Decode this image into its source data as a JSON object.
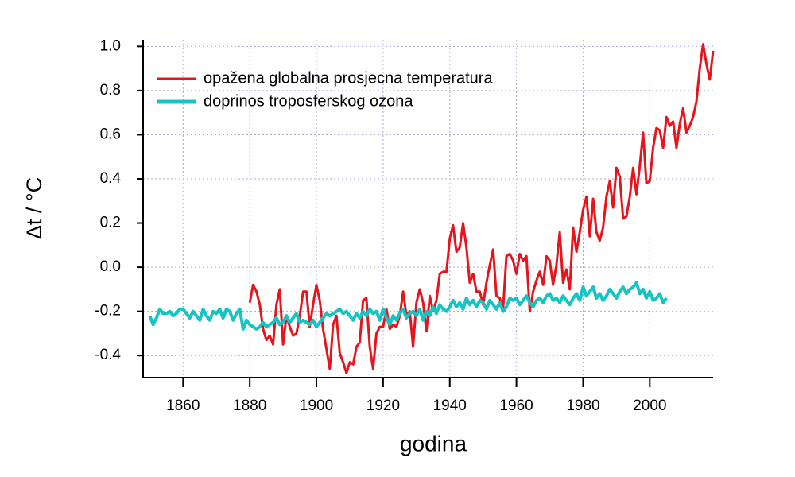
{
  "chart_data": {
    "type": "line",
    "ylabel": "Δt / °C",
    "xlabel": "godina",
    "xlim": [
      1848,
      2019
    ],
    "ylim": [
      -0.5,
      1.03
    ],
    "xticks": [
      1860,
      1880,
      1900,
      1920,
      1940,
      1960,
      1980,
      2000
    ],
    "yticks": [
      {
        "value": 1,
        "label": "1.0"
      },
      0.8,
      0.6,
      0.4,
      0.2,
      {
        "value": 0,
        "label": "0.0"
      },
      -0.2,
      -0.4
    ],
    "grid": true,
    "legend": "upper left",
    "series": [
      {
        "name": "opažena globalna prosjecna temperatura",
        "color": "#e8141c",
        "x": [
          1880,
          1881,
          1882,
          1883,
          1884,
          1885,
          1886,
          1887,
          1888,
          1889,
          1890,
          1891,
          1892,
          1893,
          1894,
          1895,
          1896,
          1897,
          1898,
          1899,
          1900,
          1901,
          1902,
          1903,
          1904,
          1905,
          1906,
          1907,
          1908,
          1909,
          1910,
          1911,
          1912,
          1913,
          1914,
          1915,
          1916,
          1917,
          1918,
          1919,
          1920,
          1921,
          1922,
          1923,
          1924,
          1925,
          1926,
          1927,
          1928,
          1929,
          1930,
          1931,
          1932,
          1933,
          1934,
          1935,
          1936,
          1937,
          1938,
          1939,
          1940,
          1941,
          1942,
          1943,
          1944,
          1945,
          1946,
          1947,
          1948,
          1949,
          1950,
          1951,
          1952,
          1953,
          1954,
          1955,
          1956,
          1957,
          1958,
          1959,
          1960,
          1961,
          1962,
          1963,
          1964,
          1965,
          1966,
          1967,
          1968,
          1969,
          1970,
          1971,
          1972,
          1973,
          1974,
          1975,
          1976,
          1977,
          1978,
          1979,
          1980,
          1981,
          1982,
          1983,
          1984,
          1985,
          1986,
          1987,
          1988,
          1989,
          1990,
          1991,
          1992,
          1993,
          1994,
          1995,
          1996,
          1997,
          1998,
          1999,
          2000,
          2001,
          2002,
          2003,
          2004,
          2005,
          2006,
          2007,
          2008,
          2009,
          2010,
          2011,
          2012,
          2013,
          2014,
          2015,
          2016,
          2017,
          2018,
          2019
        ],
        "values": [
          -0.16,
          -0.08,
          -0.11,
          -0.17,
          -0.28,
          -0.33,
          -0.31,
          -0.35,
          -0.17,
          -0.1,
          -0.35,
          -0.22,
          -0.27,
          -0.31,
          -0.3,
          -0.22,
          -0.11,
          -0.11,
          -0.27,
          -0.17,
          -0.08,
          -0.15,
          -0.28,
          -0.37,
          -0.46,
          -0.26,
          -0.22,
          -0.39,
          -0.43,
          -0.48,
          -0.43,
          -0.44,
          -0.36,
          -0.34,
          -0.15,
          -0.14,
          -0.36,
          -0.46,
          -0.3,
          -0.27,
          -0.27,
          -0.19,
          -0.28,
          -0.26,
          -0.27,
          -0.22,
          -0.11,
          -0.22,
          -0.2,
          -0.36,
          -0.16,
          -0.1,
          -0.16,
          -0.29,
          -0.13,
          -0.2,
          -0.15,
          -0.03,
          -0.02,
          -0.02,
          0.13,
          0.19,
          0.07,
          0.09,
          0.2,
          0.09,
          -0.07,
          -0.03,
          -0.11,
          -0.11,
          -0.17,
          -0.07,
          0.01,
          0.08,
          -0.13,
          -0.14,
          -0.19,
          0.05,
          0.06,
          0.03,
          -0.03,
          0.06,
          0.03,
          0.05,
          -0.2,
          -0.11,
          -0.06,
          -0.02,
          -0.08,
          0.05,
          0.03,
          -0.08,
          0.01,
          0.16,
          -0.07,
          -0.01,
          -0.1,
          0.18,
          0.07,
          0.16,
          0.26,
          0.32,
          0.14,
          0.31,
          0.16,
          0.12,
          0.18,
          0.32,
          0.39,
          0.27,
          0.45,
          0.41,
          0.22,
          0.23,
          0.32,
          0.45,
          0.33,
          0.46,
          0.61,
          0.38,
          0.39,
          0.54,
          0.63,
          0.62,
          0.54,
          0.68,
          0.64,
          0.66,
          0.54,
          0.65,
          0.72,
          0.61,
          0.64,
          0.68,
          0.75,
          0.9,
          1.01,
          0.92,
          0.85,
          0.98
        ]
      },
      {
        "name": "doprinos troposferskog ozona",
        "color": "#17c4c4",
        "x": [
          1850,
          1851,
          1852,
          1853,
          1854,
          1855,
          1856,
          1857,
          1858,
          1859,
          1860,
          1861,
          1862,
          1863,
          1864,
          1865,
          1866,
          1867,
          1868,
          1869,
          1870,
          1871,
          1872,
          1873,
          1874,
          1875,
          1876,
          1877,
          1878,
          1879,
          1880,
          1881,
          1882,
          1883,
          1884,
          1885,
          1886,
          1887,
          1888,
          1889,
          1890,
          1891,
          1892,
          1893,
          1894,
          1895,
          1896,
          1897,
          1898,
          1899,
          1900,
          1901,
          1902,
          1903,
          1904,
          1905,
          1906,
          1907,
          1908,
          1909,
          1910,
          1911,
          1912,
          1913,
          1914,
          1915,
          1916,
          1917,
          1918,
          1919,
          1920,
          1921,
          1922,
          1923,
          1924,
          1925,
          1926,
          1927,
          1928,
          1929,
          1930,
          1931,
          1932,
          1933,
          1934,
          1935,
          1936,
          1937,
          1938,
          1939,
          1940,
          1941,
          1942,
          1943,
          1944,
          1945,
          1946,
          1947,
          1948,
          1949,
          1950,
          1951,
          1952,
          1953,
          1954,
          1955,
          1956,
          1957,
          1958,
          1959,
          1960,
          1961,
          1962,
          1963,
          1964,
          1965,
          1966,
          1967,
          1968,
          1969,
          1970,
          1971,
          1972,
          1973,
          1974,
          1975,
          1976,
          1977,
          1978,
          1979,
          1980,
          1981,
          1982,
          1983,
          1984,
          1985,
          1986,
          1987,
          1988,
          1989,
          1990,
          1991,
          1992,
          1993,
          1994,
          1995,
          1996,
          1997,
          1998,
          1999,
          2000,
          2001,
          2002,
          2003,
          2004,
          2005
        ],
        "values": [
          -0.22,
          -0.26,
          -0.23,
          -0.19,
          -0.21,
          -0.21,
          -0.2,
          -0.22,
          -0.21,
          -0.19,
          -0.19,
          -0.21,
          -0.23,
          -0.2,
          -0.22,
          -0.24,
          -0.19,
          -0.22,
          -0.24,
          -0.2,
          -0.21,
          -0.19,
          -0.23,
          -0.19,
          -0.2,
          -0.24,
          -0.21,
          -0.19,
          -0.28,
          -0.24,
          -0.26,
          -0.27,
          -0.28,
          -0.27,
          -0.25,
          -0.27,
          -0.26,
          -0.25,
          -0.23,
          -0.26,
          -0.25,
          -0.22,
          -0.25,
          -0.23,
          -0.21,
          -0.25,
          -0.24,
          -0.25,
          -0.26,
          -0.24,
          -0.27,
          -0.25,
          -0.23,
          -0.21,
          -0.22,
          -0.21,
          -0.2,
          -0.19,
          -0.21,
          -0.2,
          -0.22,
          -0.24,
          -0.21,
          -0.23,
          -0.2,
          -0.22,
          -0.19,
          -0.21,
          -0.2,
          -0.24,
          -0.19,
          -0.23,
          -0.26,
          -0.22,
          -0.24,
          -0.21,
          -0.19,
          -0.23,
          -0.21,
          -0.2,
          -0.22,
          -0.19,
          -0.24,
          -0.2,
          -0.22,
          -0.18,
          -0.21,
          -0.17,
          -0.19,
          -0.2,
          -0.18,
          -0.15,
          -0.18,
          -0.16,
          -0.19,
          -0.14,
          -0.17,
          -0.15,
          -0.18,
          -0.15,
          -0.16,
          -0.19,
          -0.15,
          -0.17,
          -0.19,
          -0.16,
          -0.2,
          -0.18,
          -0.14,
          -0.15,
          -0.14,
          -0.17,
          -0.15,
          -0.13,
          -0.16,
          -0.18,
          -0.15,
          -0.14,
          -0.16,
          -0.13,
          -0.12,
          -0.15,
          -0.14,
          -0.16,
          -0.13,
          -0.15,
          -0.17,
          -0.14,
          -0.12,
          -0.15,
          -0.09,
          -0.13,
          -0.11,
          -0.09,
          -0.14,
          -0.12,
          -0.15,
          -0.13,
          -0.1,
          -0.12,
          -0.14,
          -0.11,
          -0.09,
          -0.12,
          -0.1,
          -0.09,
          -0.07,
          -0.12,
          -0.1,
          -0.14,
          -0.11,
          -0.15,
          -0.14,
          -0.12,
          -0.16,
          -0.14
        ]
      }
    ]
  }
}
